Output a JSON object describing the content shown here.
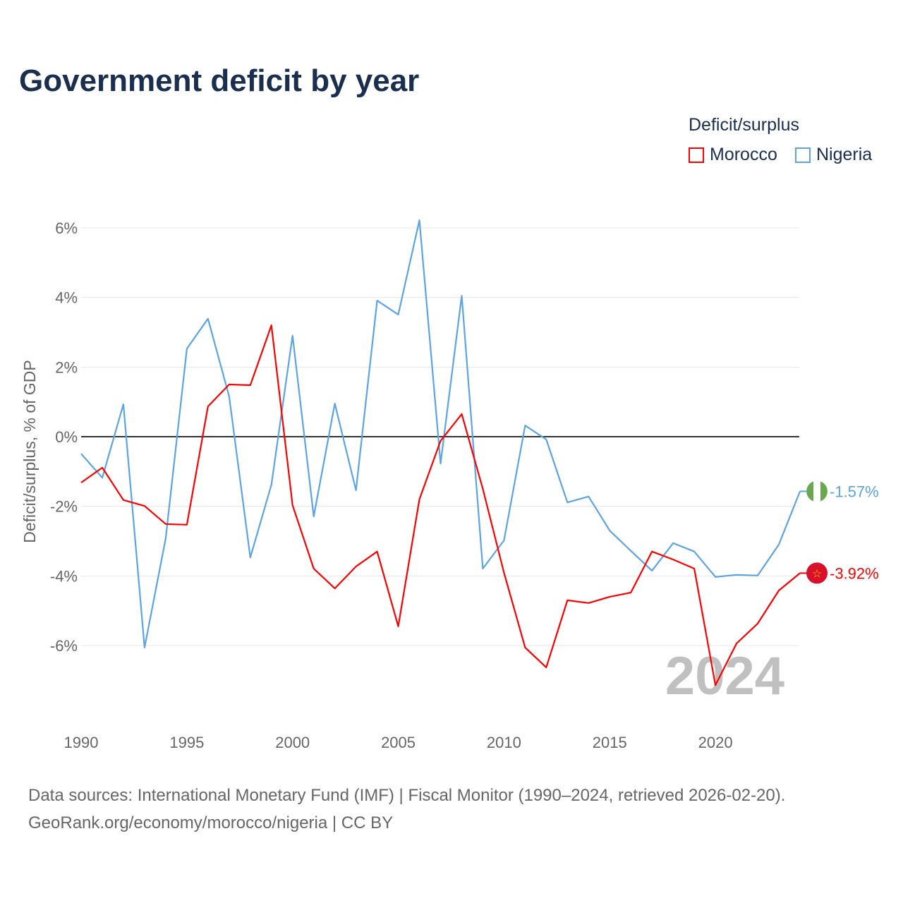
{
  "chart_data": {
    "type": "line",
    "title": "Government deficit by year",
    "ylabel": "Deficit/surplus, % of GDP",
    "xlabel": "",
    "xlim": [
      1990,
      2024
    ],
    "ylim": [
      -8,
      6.5
    ],
    "yticks": [
      6,
      4,
      2,
      0,
      -2,
      -4,
      -6
    ],
    "ytick_labels": [
      "6%",
      "4%",
      "2%",
      "0%",
      "-2%",
      "-4%",
      "-6%"
    ],
    "xticks": [
      1990,
      1995,
      2000,
      2005,
      2010,
      2015,
      2020
    ],
    "xtick_labels": [
      "1990",
      "1995",
      "2000",
      "2005",
      "2010",
      "2015",
      "2020"
    ],
    "grid": true,
    "legend_title": "Deficit/surplus",
    "legend_placement": "top-right",
    "watermark_year": "2024",
    "x": [
      1990,
      1991,
      1992,
      1993,
      1994,
      1995,
      1996,
      1997,
      1998,
      1999,
      2000,
      2001,
      2002,
      2003,
      2004,
      2005,
      2006,
      2007,
      2008,
      2009,
      2010,
      2011,
      2012,
      2013,
      2014,
      2015,
      2016,
      2017,
      2018,
      2019,
      2020,
      2021,
      2022,
      2023,
      2024
    ],
    "series": [
      {
        "name": "Morocco",
        "color": "#ff0000",
        "end_label": "-3.92%",
        "values": [
          -1.32,
          -0.89,
          -1.82,
          -1.99,
          -2.51,
          -2.53,
          0.87,
          1.5,
          1.48,
          3.2,
          -1.97,
          -3.79,
          -4.36,
          -3.73,
          -3.3,
          -5.45,
          -1.8,
          -0.12,
          0.65,
          -1.5,
          -3.91,
          -6.06,
          -6.63,
          -4.7,
          -4.78,
          -4.6,
          -4.48,
          -3.3,
          -3.53,
          -3.79,
          -7.14,
          -5.94,
          -5.37,
          -4.42,
          -3.92
        ]
      },
      {
        "name": "Nigeria",
        "color": "#5ba4e6",
        "end_label": "-1.57%",
        "values": [
          -0.49,
          -1.18,
          0.93,
          -6.06,
          -2.92,
          2.53,
          3.39,
          1.16,
          -3.47,
          -1.38,
          2.9,
          -2.29,
          0.95,
          -1.54,
          3.91,
          3.51,
          6.22,
          -0.77,
          4.05,
          -3.79,
          -2.98,
          0.32,
          -0.08,
          -1.89,
          -1.72,
          -2.7,
          -3.28,
          -3.85,
          -3.06,
          -3.3,
          -4.03,
          -3.97,
          -3.99,
          -3.1,
          -1.57
        ]
      }
    ]
  },
  "source": {
    "line1": "Data sources: International Monetary Fund (IMF) | Fiscal Monitor (1990–2024, retrieved 2026-02-20).",
    "line2": "GeoRank.org/economy/morocco/nigeria | CC BY"
  }
}
